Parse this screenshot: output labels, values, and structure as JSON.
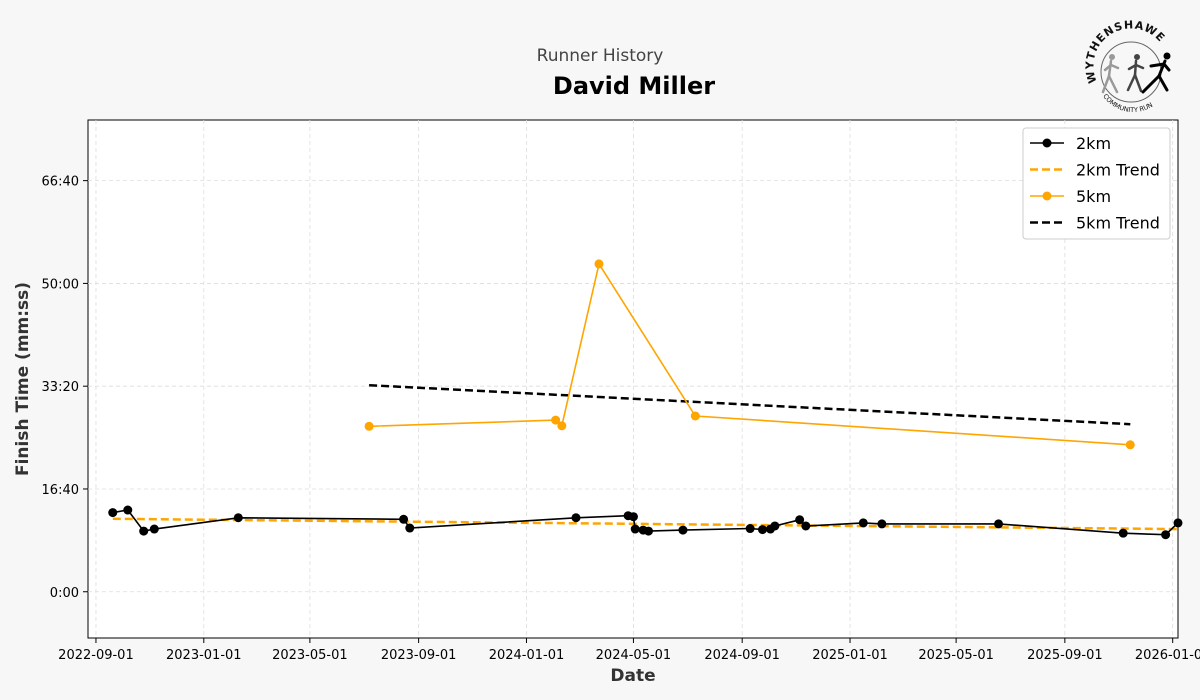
{
  "header": {
    "subtitle": "Runner History",
    "title": "David Miller"
  },
  "logo": {
    "text_top": "WYTHENSHAWE",
    "text_bottom": "COMMUNITY RUN"
  },
  "colors": {
    "series_2km": "#000000",
    "series_5km": "#ffa500",
    "trend_2km": "#ffa500",
    "trend_5km": "#000000",
    "background": "#f7f7f7",
    "plot_bg": "#ffffff",
    "grid": "#dddddd"
  },
  "chart_data": {
    "type": "line",
    "xlabel": "Date",
    "ylabel": "Finish Time (mm:ss)",
    "x_axis_type": "date",
    "xlim": [
      "2022-08-23",
      "2026-01-07"
    ],
    "ylim_seconds": [
      -450,
      4590
    ],
    "x_ticks": [
      "2022-09-01",
      "2023-01-01",
      "2023-05-01",
      "2023-09-01",
      "2024-01-01",
      "2024-05-01",
      "2024-09-01",
      "2025-01-01",
      "2025-05-01",
      "2025-09-01",
      "2026-01-01"
    ],
    "y_ticks": [
      {
        "label": "0:00",
        "seconds": 0
      },
      {
        "label": "16:40",
        "seconds": 1000
      },
      {
        "label": "33:20",
        "seconds": 2000
      },
      {
        "label": "50:00",
        "seconds": 3000
      },
      {
        "label": "66:40",
        "seconds": 4000
      }
    ],
    "grid": true,
    "legend": "top-right",
    "series": [
      {
        "name": "2km",
        "style": "line-marker",
        "points": [
          {
            "date": "2022-09-20",
            "seconds": 770
          },
          {
            "date": "2022-10-07",
            "seconds": 795
          },
          {
            "date": "2022-10-25",
            "seconds": 590
          },
          {
            "date": "2022-11-06",
            "seconds": 610
          },
          {
            "date": "2023-02-09",
            "seconds": 720
          },
          {
            "date": "2023-08-15",
            "seconds": 705
          },
          {
            "date": "2023-08-22",
            "seconds": 620
          },
          {
            "date": "2024-02-26",
            "seconds": 720
          },
          {
            "date": "2024-04-25",
            "seconds": 740
          },
          {
            "date": "2024-05-01",
            "seconds": 730
          },
          {
            "date": "2024-05-03",
            "seconds": 610
          },
          {
            "date": "2024-05-12",
            "seconds": 600
          },
          {
            "date": "2024-05-18",
            "seconds": 590
          },
          {
            "date": "2024-06-26",
            "seconds": 600
          },
          {
            "date": "2024-09-10",
            "seconds": 615
          },
          {
            "date": "2024-09-24",
            "seconds": 605
          },
          {
            "date": "2024-10-03",
            "seconds": 610
          },
          {
            "date": "2024-10-08",
            "seconds": 640
          },
          {
            "date": "2024-11-05",
            "seconds": 700
          },
          {
            "date": "2024-11-12",
            "seconds": 640
          },
          {
            "date": "2025-01-16",
            "seconds": 670
          },
          {
            "date": "2025-02-06",
            "seconds": 660
          },
          {
            "date": "2025-06-18",
            "seconds": 660
          },
          {
            "date": "2025-11-06",
            "seconds": 570
          },
          {
            "date": "2025-12-24",
            "seconds": 555
          },
          {
            "date": "2026-01-07",
            "seconds": 670
          }
        ]
      },
      {
        "name": "2km Trend",
        "style": "dashed",
        "points": [
          {
            "date": "2022-09-20",
            "seconds": 710
          },
          {
            "date": "2026-01-07",
            "seconds": 610
          }
        ]
      },
      {
        "name": "5km",
        "style": "line-marker",
        "points": [
          {
            "date": "2023-07-07",
            "seconds": 1610
          },
          {
            "date": "2024-02-03",
            "seconds": 1670
          },
          {
            "date": "2024-02-10",
            "seconds": 1615
          },
          {
            "date": "2024-03-23",
            "seconds": 3190
          },
          {
            "date": "2024-07-10",
            "seconds": 1710
          },
          {
            "date": "2025-11-14",
            "seconds": 1430
          }
        ]
      },
      {
        "name": "5km Trend",
        "style": "dashed",
        "points": [
          {
            "date": "2023-07-07",
            "seconds": 2010
          },
          {
            "date": "2025-11-14",
            "seconds": 1630
          }
        ]
      }
    ]
  }
}
